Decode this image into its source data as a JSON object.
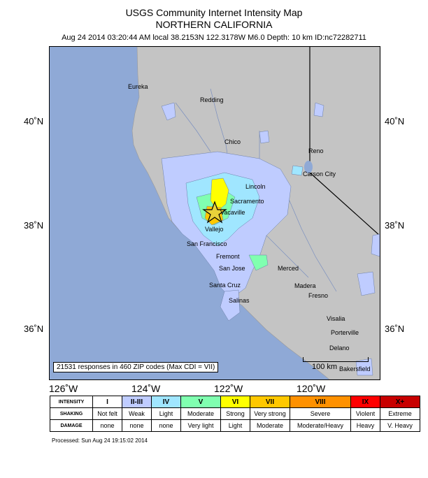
{
  "header": {
    "title": "USGS Community Internet Intensity Map",
    "region": "NORTHERN CALIFORNIA",
    "event_info": "Aug 24 2014 03:20:44 AM local 38.2153N 122.3178W M6.0 Depth: 10 km ID:nc72282711"
  },
  "map": {
    "lat_labels": [
      "40˚N",
      "38˚N",
      "36˚N"
    ],
    "lon_labels": [
      "126˚W",
      "124˚W",
      "122˚W",
      "120˚W"
    ],
    "cities": [
      "Eureka",
      "Redding",
      "Chico",
      "Reno",
      "Carson City",
      "Lincoln",
      "Sacramento",
      "Vacaville",
      "Vallejo",
      "San Francisco",
      "Fremont",
      "San Jose",
      "Santa Cruz",
      "Salinas",
      "Merced",
      "Madera",
      "Fresno",
      "Visalia",
      "Porterville",
      "Delano",
      "Bakersfield"
    ],
    "responses": "21531 responses in 460 ZIP codes (Max CDI = VII)",
    "scale_label": "100 km",
    "colors": {
      "ocean": "#8fa9d6",
      "land": "#c8c8c8",
      "epicenter": "#000000"
    }
  },
  "legend": {
    "row_labels": {
      "intensity": "INTENSITY",
      "shaking": "SHAKING",
      "damage": "DAMAGE"
    },
    "intensity": [
      "I",
      "II-III",
      "IV",
      "V",
      "VI",
      "VII",
      "VIII",
      "IX",
      "X+"
    ],
    "shaking": [
      "Not felt",
      "Weak",
      "Light",
      "Moderate",
      "Strong",
      "Very strong",
      "Severe",
      "Violent",
      "Extreme"
    ],
    "damage": [
      "none",
      "none",
      "none",
      "Very light",
      "Light",
      "Moderate",
      "Moderate/Heavy",
      "Heavy",
      "V. Heavy"
    ],
    "colors": [
      "#ffffff",
      "#bfccff",
      "#a0e6ff",
      "#80ffb0",
      "#ffff00",
      "#ffc800",
      "#ff9100",
      "#ff0000",
      "#c80000"
    ]
  },
  "footer": {
    "processed": "Processed: Sun Aug 24 19:15:02 2014"
  }
}
